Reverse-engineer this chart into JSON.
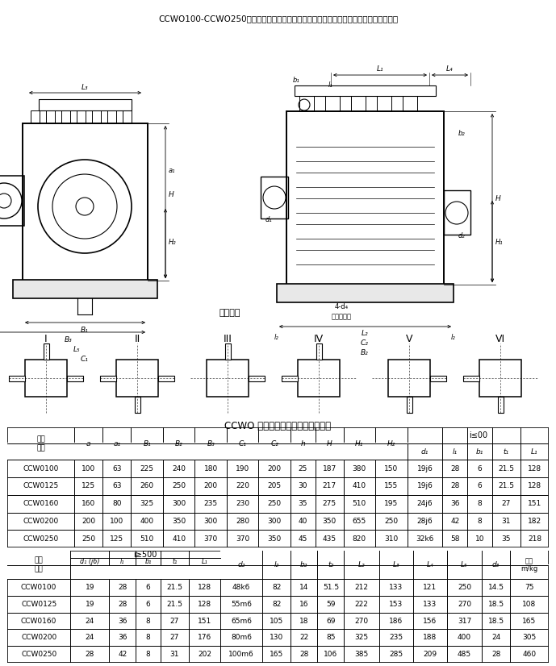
{
  "title": "CCWO100-CCWO250、型低速级蜗杆在蜗轮之上的双级蝱杆减速机的装配形式与主要尺寸",
  "table_title": "CCWO 型双级蝱杆减速器及装配型式",
  "table1_headers_row1": [
    "型号\\尺寸",
    "a",
    "a₁",
    "B₁",
    "B₂",
    "B₃",
    "C₁",
    "C₂",
    "h",
    "H",
    "H₁",
    "H₂",
    "i≤00"
  ],
  "table1_headers_row2": [
    "d₁",
    "l₁",
    "b₁",
    "t₁",
    "L₁"
  ],
  "table1_data": [
    [
      "CCW0100",
      "100",
      "63",
      "225",
      "240",
      "180",
      "190",
      "200",
      "25",
      "187",
      "380",
      "150",
      "19j6",
      "28",
      "6",
      "21.5",
      "128"
    ],
    [
      "CCW0125",
      "125",
      "63",
      "260",
      "250",
      "200",
      "220",
      "205",
      "30",
      "217",
      "410",
      "155",
      "19j6",
      "28",
      "6",
      "21.5",
      "128"
    ],
    [
      "CCW0160",
      "160",
      "80",
      "325",
      "300",
      "235",
      "230",
      "250",
      "35",
      "275",
      "510",
      "195",
      "24j6",
      "36",
      "8",
      "27",
      "151"
    ],
    [
      "CCW0200",
      "200",
      "100",
      "400",
      "350",
      "300",
      "280",
      "300",
      "40",
      "350",
      "655",
      "250",
      "28j6",
      "42",
      "8",
      "31",
      "182"
    ],
    [
      "CCW0250",
      "250",
      "125",
      "510",
      "410",
      "370",
      "370",
      "350",
      "45",
      "435",
      "820",
      "310",
      "32k6",
      "58",
      "10",
      "35",
      "218"
    ]
  ],
  "table2_data": [
    [
      "CCW0100",
      "19",
      "28",
      "6",
      "21.5",
      "128",
      "48k6",
      "82",
      "14",
      "51.5",
      "212",
      "133",
      "121",
      "250",
      "14.5",
      "75"
    ],
    [
      "CCW0125",
      "19",
      "28",
      "6",
      "21.5",
      "128",
      "55m6",
      "82",
      "16",
      "59",
      "222",
      "153",
      "133",
      "270",
      "18.5",
      "108"
    ],
    [
      "CCW0160",
      "24",
      "36",
      "8",
      "27",
      "151",
      "65m6",
      "105",
      "18",
      "69",
      "270",
      "186",
      "156",
      "317",
      "18.5",
      "165"
    ],
    [
      "CCW0200",
      "24",
      "36",
      "8",
      "27",
      "176",
      "80m6",
      "130",
      "22",
      "85",
      "325",
      "235",
      "188",
      "400",
      "24",
      "305"
    ],
    [
      "CCW0250",
      "28",
      "42",
      "8",
      "31",
      "202",
      "100m6",
      "165",
      "28",
      "106",
      "385",
      "285",
      "209",
      "485",
      "28",
      "460"
    ]
  ],
  "bg_color": "#ffffff",
  "line_color": "#000000",
  "assembly_types": [
    "I",
    "II",
    "III",
    "IV",
    "V",
    "VI"
  ]
}
